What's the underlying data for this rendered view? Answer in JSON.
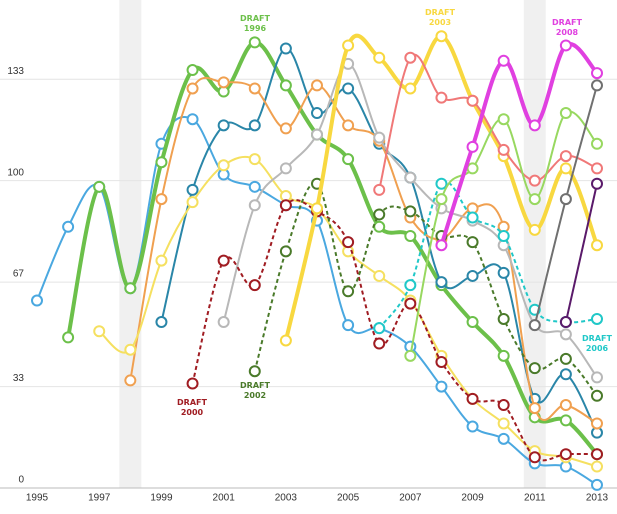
{
  "chart_data": {
    "type": "line",
    "xlim": [
      1995,
      2013
    ],
    "xticks": [
      1995,
      1997,
      1999,
      2001,
      2003,
      2005,
      2007,
      2009,
      2011,
      2013
    ],
    "ylim": [
      0,
      150
    ],
    "yticks": [
      0,
      33,
      67,
      100,
      133
    ],
    "grid": true,
    "shaded_years": [
      1998,
      2011
    ],
    "annotations": [
      "DRAFT 1996",
      "DRAFT 2000",
      "DRAFT 2002",
      "DRAFT 2003",
      "DRAFT 2008",
      "DRAFT 2006"
    ],
    "series": [
      {
        "color": "#4aa8e0",
        "dashed": false,
        "x": [
          1995,
          1996,
          1997,
          1998,
          1999,
          2000,
          2001,
          2002,
          2003,
          2004,
          2005,
          2006,
          2007,
          2008,
          2009,
          2010,
          2011,
          2012,
          2013
        ],
        "values": [
          61,
          85,
          98,
          65,
          112,
          120,
          102,
          98,
          92,
          87,
          53,
          52,
          46,
          33,
          20,
          16,
          8,
          7,
          1
        ]
      },
      {
        "color": "#6cc04a",
        "dashed": false,
        "x": [
          1996,
          1997,
          1998,
          1999,
          2000,
          2001,
          2002,
          2003,
          2004,
          2005,
          2006,
          2007,
          2008,
          2009,
          2010,
          2011,
          2012,
          2013
        ],
        "values": [
          49,
          98,
          65,
          106,
          136,
          129,
          145,
          131,
          115,
          107,
          85,
          82,
          66,
          54,
          43,
          23,
          22,
          11
        ]
      },
      {
        "color": "#2a86a8",
        "dashed": false,
        "x": [
          1999,
          2000,
          2001,
          2002,
          2003,
          2004,
          2005,
          2006,
          2007,
          2008,
          2009,
          2010,
          2011,
          2012,
          2013
        ],
        "values": [
          54,
          97,
          118,
          118,
          143,
          122,
          130,
          112,
          101,
          67,
          69,
          70,
          29,
          37,
          18
        ]
      },
      {
        "color": "#f0a050",
        "dashed": false,
        "x": [
          1998,
          1999,
          2000,
          2001,
          2002,
          2003,
          2004,
          2005,
          2006,
          2007,
          2008,
          2009,
          2010,
          2011,
          2012,
          2013
        ],
        "values": [
          35,
          94,
          130,
          132,
          130,
          117,
          131,
          118,
          113,
          88,
          81,
          91,
          85,
          26,
          27,
          21
        ]
      },
      {
        "color": "#f5e060",
        "dashed": false,
        "x": [
          1997,
          1998,
          1999,
          2000,
          2001,
          2002,
          2003,
          2004,
          2005,
          2006,
          2007,
          2008,
          2009,
          2010,
          2011,
          2012,
          2013
        ],
        "values": [
          51,
          45,
          74,
          93,
          105,
          107,
          95,
          91,
          77,
          69,
          61,
          43,
          29,
          21,
          12,
          10,
          7
        ]
      },
      {
        "color": "#b8b8b8",
        "dashed": false,
        "x": [
          2001,
          2002,
          2003,
          2004,
          2005,
          2006,
          2007,
          2008,
          2009,
          2010,
          2011,
          2012,
          2013
        ],
        "values": [
          54,
          92,
          104,
          115,
          138,
          114,
          101,
          91,
          87,
          79,
          53,
          50,
          36
        ]
      },
      {
        "color": "#a01c22",
        "dashed": true,
        "x": [
          2000,
          2001,
          2002,
          2003,
          2004,
          2005,
          2006,
          2007,
          2008,
          2009,
          2010,
          2011,
          2012,
          2013
        ],
        "values": [
          34,
          74,
          66,
          92,
          90,
          80,
          47,
          60,
          41,
          29,
          27,
          10,
          11,
          11
        ]
      },
      {
        "color": "#4a7a2a",
        "dashed": true,
        "x": [
          2002,
          2003,
          2004,
          2005,
          2006,
          2007,
          2008,
          2009,
          2010,
          2011,
          2012,
          2013
        ],
        "values": [
          38,
          77,
          99,
          64,
          89,
          90,
          82,
          80,
          55,
          39,
          42,
          30
        ]
      },
      {
        "color": "#f8d840",
        "dashed": false,
        "x": [
          2003,
          2004,
          2005,
          2006,
          2007,
          2008,
          2009,
          2010,
          2011,
          2012,
          2013
        ],
        "values": [
          48,
          91,
          144,
          140,
          130,
          147,
          126,
          108,
          84,
          104,
          79
        ]
      },
      {
        "color": "#f07878",
        "dashed": false,
        "x": [
          2006,
          2007,
          2008,
          2009,
          2010,
          2011,
          2012,
          2013
        ],
        "values": [
          97,
          140,
          127,
          126,
          110,
          100,
          108,
          104
        ]
      },
      {
        "color": "#20c8c8",
        "dashed": true,
        "x": [
          2006,
          2007,
          2008,
          2009,
          2010,
          2011,
          2012,
          2013
        ],
        "values": [
          52,
          66,
          99,
          88,
          82,
          58,
          54,
          55
        ]
      },
      {
        "color": "#98d860",
        "dashed": false,
        "x": [
          2007,
          2008,
          2009,
          2010,
          2011,
          2012,
          2013
        ],
        "values": [
          43,
          94,
          104,
          120,
          94,
          122,
          112
        ]
      },
      {
        "color": "#e040e0",
        "dashed": false,
        "x": [
          2008,
          2009,
          2010,
          2011,
          2012,
          2013
        ],
        "values": [
          79,
          111,
          139,
          118,
          144,
          135
        ]
      },
      {
        "color": "#707070",
        "dashed": false,
        "x": [
          2011,
          2012,
          2013
        ],
        "values": [
          53,
          94,
          131
        ]
      },
      {
        "color": "#5a1a6a",
        "dashed": false,
        "x": [
          2012,
          2013
        ],
        "values": [
          54,
          99
        ]
      }
    ]
  }
}
